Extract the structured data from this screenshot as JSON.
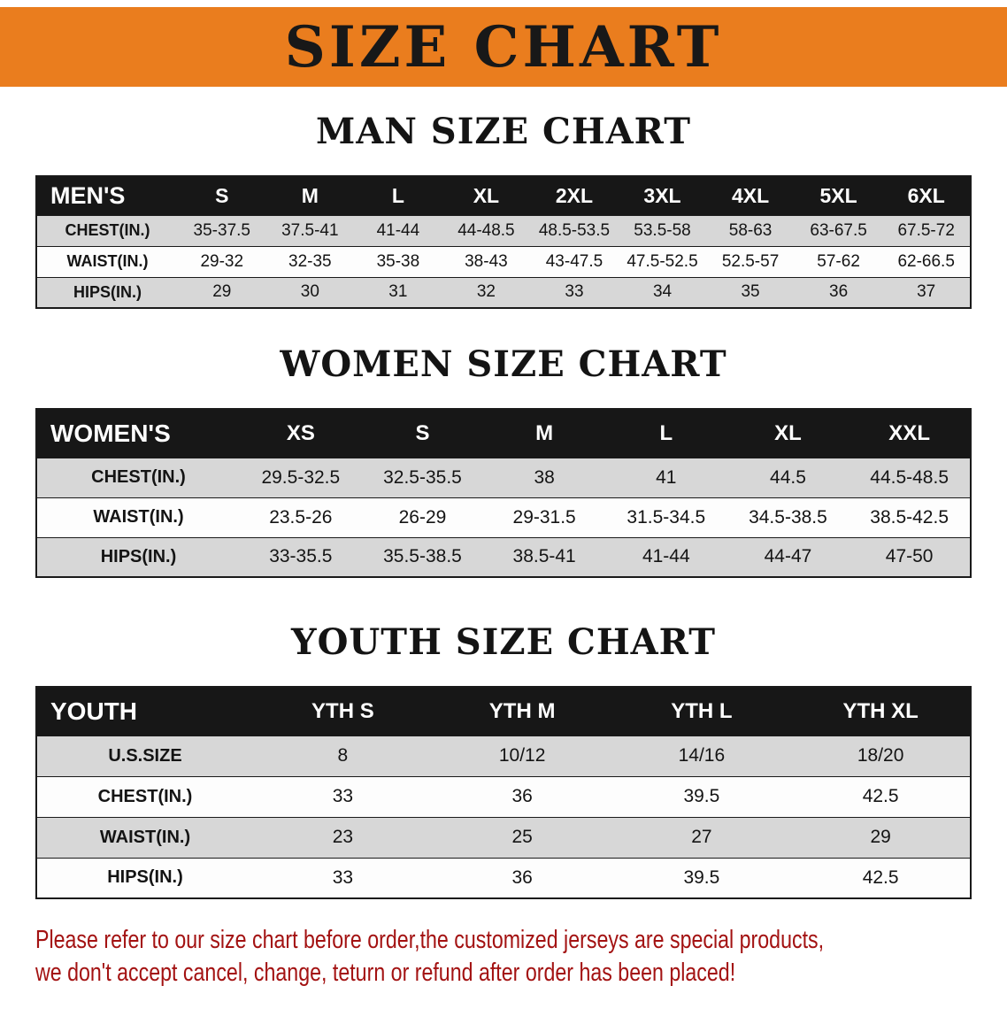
{
  "banner": {
    "title": "SIZE CHART"
  },
  "colors": {
    "banner_bg": "#ea7d1e",
    "header_bg": "#171717",
    "row_alt_bg": "#d7d7d7",
    "disclaimer": "#a31212"
  },
  "sections": [
    {
      "id": "men",
      "heading": "MAN SIZE CHART",
      "table": {
        "header": [
          "MEN'S",
          "S",
          "M",
          "L",
          "XL",
          "2XL",
          "3XL",
          "4XL",
          "5XL",
          "6XL"
        ],
        "rows": [
          {
            "label": "CHEST(IN.)",
            "values": [
              "35-37.5",
              "37.5-41",
              "41-44",
              "44-48.5",
              "48.5-53.5",
              "53.5-58",
              "58-63",
              "63-67.5",
              "67.5-72"
            ]
          },
          {
            "label": "WAIST(IN.)",
            "values": [
              "29-32",
              "32-35",
              "35-38",
              "38-43",
              "43-47.5",
              "47.5-52.5",
              "52.5-57",
              "57-62",
              "62-66.5"
            ]
          },
          {
            "label": "HIPS(IN.)",
            "values": [
              "29",
              "30",
              "31",
              "32",
              "33",
              "34",
              "35",
              "36",
              "37"
            ]
          }
        ]
      }
    },
    {
      "id": "women",
      "heading": "WOMEN SIZE CHART",
      "table": {
        "header": [
          "WOMEN'S",
          "XS",
          "S",
          "M",
          "L",
          "XL",
          "XXL"
        ],
        "rows": [
          {
            "label": "CHEST(IN.)",
            "values": [
              "29.5-32.5",
              "32.5-35.5",
              "38",
              "41",
              "44.5",
              "44.5-48.5"
            ]
          },
          {
            "label": "WAIST(IN.)",
            "values": [
              "23.5-26",
              "26-29",
              "29-31.5",
              "31.5-34.5",
              "34.5-38.5",
              "38.5-42.5"
            ]
          },
          {
            "label": "HIPS(IN.)",
            "values": [
              "33-35.5",
              "35.5-38.5",
              "38.5-41",
              "41-44",
              "44-47",
              "47-50"
            ]
          }
        ]
      }
    },
    {
      "id": "youth",
      "heading": "YOUTH SIZE CHART",
      "table": {
        "header": [
          "YOUTH",
          "YTH S",
          "YTH M",
          "YTH L",
          "YTH XL"
        ],
        "rows": [
          {
            "label": "U.S.SIZE",
            "values": [
              "8",
              "10/12",
              "14/16",
              "18/20"
            ]
          },
          {
            "label": "CHEST(IN.)",
            "values": [
              "33",
              "36",
              "39.5",
              "42.5"
            ]
          },
          {
            "label": "WAIST(IN.)",
            "values": [
              "23",
              "25",
              "27",
              "29"
            ]
          },
          {
            "label": "HIPS(IN.)",
            "values": [
              "33",
              "36",
              "39.5",
              "42.5"
            ]
          }
        ]
      }
    }
  ],
  "disclaimer": {
    "line1": "Please refer to our size chart before order,the customized jerseys are special products,",
    "line2": "we don't accept cancel, change, teturn or refund after order has been placed!"
  }
}
